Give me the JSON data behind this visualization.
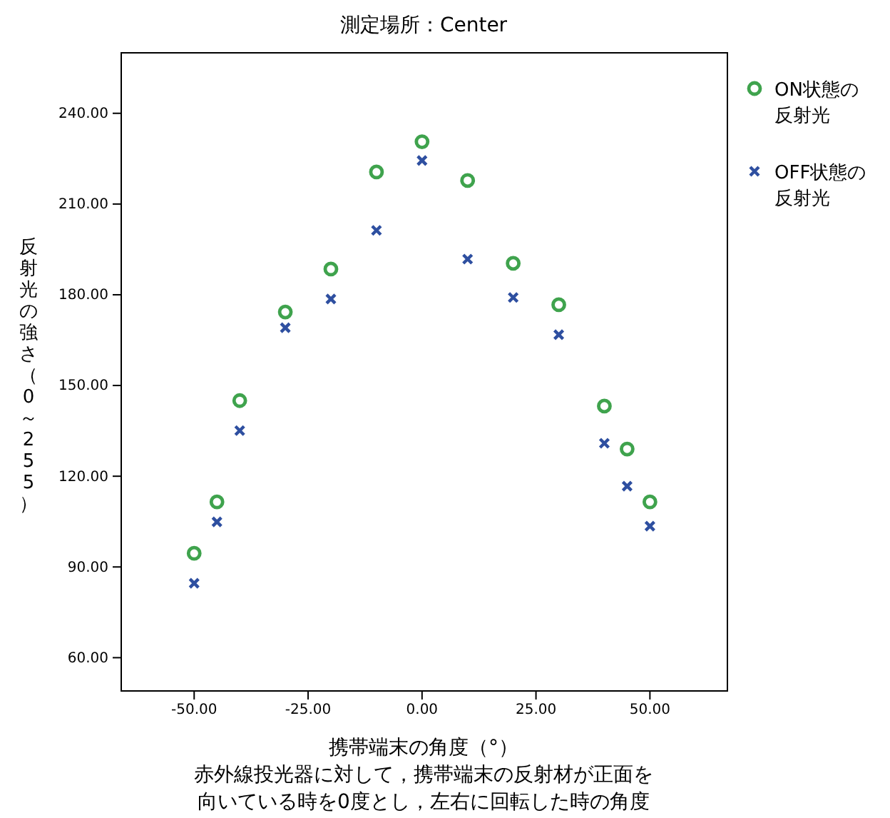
{
  "chart_data": {
    "type": "scatter",
    "title": "測定場所：Center",
    "xlabel": "携帯端末の角度（°）",
    "ylabel": "反射光の強さ（0～255）",
    "annotations": [
      "赤外線投光器に対して，携帯端末の反射材が正面を",
      "向いている時を0度とし，左右に回転した時の角度"
    ],
    "x": [
      -50,
      -45,
      -40,
      -30,
      -20,
      -10,
      0,
      10,
      20,
      30,
      40,
      45,
      50
    ],
    "series": [
      {
        "name": "ON状態の反射光",
        "color": "#3fa34d",
        "marker": "circle",
        "values": [
          94.5,
          111.5,
          145,
          174.3,
          188.5,
          220.6,
          230.6,
          217.8,
          190.4,
          176.7,
          143.2,
          129,
          111.5
        ]
      },
      {
        "name": "OFF状態の反射光",
        "color": "#2e4fa0",
        "marker": "cross",
        "values": [
          84.6,
          104.9,
          135.1,
          169.1,
          178.6,
          201.3,
          224.4,
          191.8,
          179.1,
          166.8,
          130.9,
          116.7,
          103.5
        ]
      }
    ],
    "xlim": [
      -66,
      67
    ],
    "ylim": [
      49,
      260
    ],
    "xticks": [
      {
        "value": -50,
        "label": "-50.00"
      },
      {
        "value": -25,
        "label": "-25.00"
      },
      {
        "value": 0,
        "label": "0.00"
      },
      {
        "value": 25,
        "label": "25.00"
      },
      {
        "value": 50,
        "label": "50.00"
      }
    ],
    "yticks": [
      {
        "value": 60,
        "label": "60.00"
      },
      {
        "value": 90,
        "label": "90.00"
      },
      {
        "value": 120,
        "label": "120.00"
      },
      {
        "value": 150,
        "label": "150.00"
      },
      {
        "value": 180,
        "label": "180.00"
      },
      {
        "value": 210,
        "label": "210.00"
      },
      {
        "value": 240,
        "label": "240.00"
      }
    ],
    "grid": false,
    "legend": "top right"
  }
}
